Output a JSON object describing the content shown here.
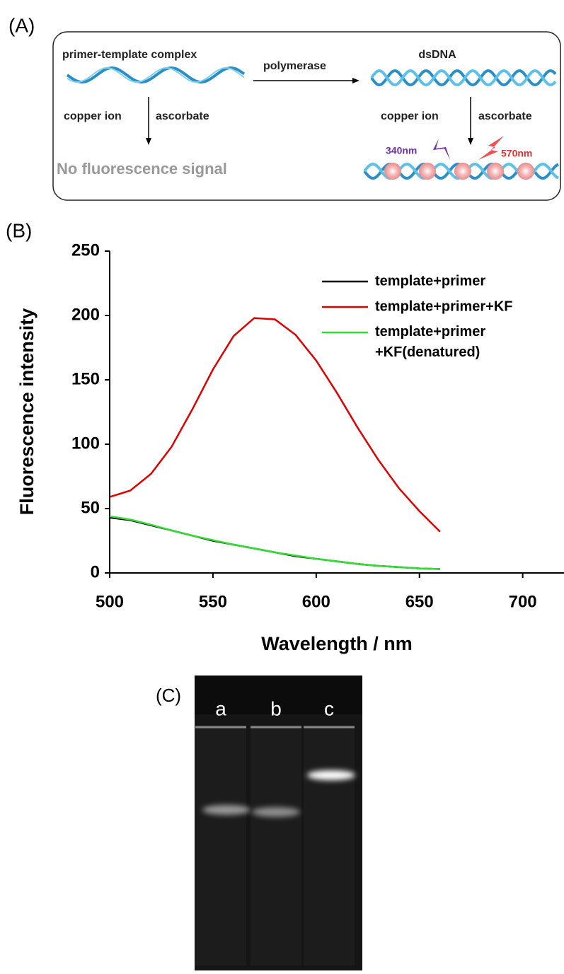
{
  "panel_a": {
    "label": "(A)",
    "left_title": "primer-template complex",
    "arrow_label": "polymerase",
    "right_title": "dsDNA",
    "left_reagent_1": "copper ion",
    "left_reagent_2": "ascorbate",
    "right_reagent_1": "copper ion",
    "right_reagent_2": "ascorbate",
    "no_signal": "No fluorescence signal",
    "excitation": "340nm",
    "emission": "570nm"
  },
  "chart_data": {
    "type": "line",
    "panel_label": "(B)",
    "xlabel": "Wavelength / nm",
    "ylabel": "Fluorescence intensity",
    "xlim": [
      500,
      720
    ],
    "xticks": [
      500,
      550,
      600,
      650,
      700
    ],
    "ylim": [
      0,
      250
    ],
    "yticks": [
      0,
      50,
      100,
      150,
      200,
      250
    ],
    "legend": "upper right",
    "x": [
      500,
      510,
      520,
      530,
      540,
      550,
      560,
      570,
      580,
      590,
      600,
      610,
      620,
      630,
      640,
      650,
      660
    ],
    "series": [
      {
        "name": "template+primer",
        "color": "#000000",
        "values": [
          43,
          41,
          37,
          33,
          29,
          25,
          22,
          19,
          16,
          13,
          11,
          9,
          7,
          5.5,
          4.5,
          3.5,
          3
        ]
      },
      {
        "name": "template+primer+KF",
        "color": "#e00000",
        "values": [
          59,
          64,
          77,
          98,
          127,
          158,
          184,
          198,
          197,
          185,
          165,
          140,
          113,
          88,
          66,
          48,
          32
        ]
      },
      {
        "name": "template+primer\n+KF(denatured)",
        "color": "#33dd33",
        "values": [
          44,
          41.5,
          37.5,
          33,
          29,
          25.5,
          22,
          19,
          16,
          13.5,
          11,
          9,
          7,
          5.5,
          4.5,
          3.5,
          3
        ]
      }
    ]
  },
  "panel_c": {
    "label": "(C)",
    "lanes": [
      "a",
      "b",
      "c"
    ]
  }
}
